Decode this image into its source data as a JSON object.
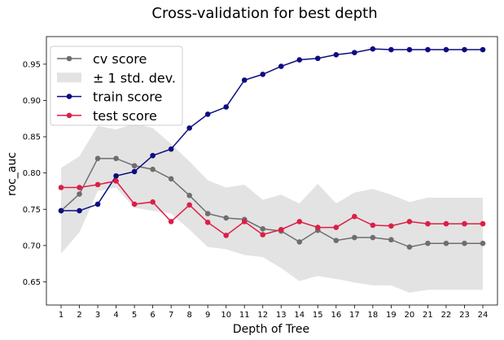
{
  "chart_data": {
    "type": "line",
    "title": "Cross-validation for best depth",
    "xlabel": "Depth of Tree",
    "ylabel": "roc_auc",
    "x": [
      1,
      2,
      3,
      4,
      5,
      6,
      7,
      8,
      9,
      10,
      11,
      12,
      13,
      14,
      15,
      16,
      17,
      18,
      19,
      20,
      21,
      22,
      23,
      24
    ],
    "xlim": [
      0.2,
      24.8
    ],
    "ylim": [
      0.618,
      0.988
    ],
    "yticks": [
      "0.65",
      "0.70",
      "0.75",
      "0.80",
      "0.85",
      "0.90",
      "0.95"
    ],
    "grid": false,
    "legend_placement": "top-left",
    "series": [
      {
        "name": "cv score",
        "color": "#6e6e6e",
        "values": [
          0.748,
          0.771,
          0.82,
          0.82,
          0.81,
          0.805,
          0.792,
          0.769,
          0.744,
          0.738,
          0.736,
          0.723,
          0.72,
          0.705,
          0.721,
          0.707,
          0.711,
          0.711,
          0.708,
          0.698,
          0.703,
          0.703,
          0.703,
          0.703
        ]
      },
      {
        "name": "train score",
        "color": "#0d0d80",
        "values": [
          0.748,
          0.748,
          0.757,
          0.796,
          0.802,
          0.824,
          0.833,
          0.862,
          0.881,
          0.891,
          0.928,
          0.936,
          0.947,
          0.956,
          0.958,
          0.963,
          0.966,
          0.971,
          0.97,
          0.97,
          0.97,
          0.97,
          0.97,
          0.97
        ]
      },
      {
        "name": "test score",
        "color": "#dc1e46",
        "values": [
          0.78,
          0.78,
          0.784,
          0.789,
          0.757,
          0.76,
          0.733,
          0.756,
          0.732,
          0.714,
          0.733,
          0.715,
          0.722,
          0.733,
          0.725,
          0.725,
          0.74,
          0.728,
          0.727,
          0.733,
          0.73,
          0.73,
          0.73,
          0.73
        ]
      }
    ],
    "band": {
      "name": "± 1 std. dev.",
      "color": "#e3e3e3",
      "upper": [
        0.807,
        0.823,
        0.865,
        0.86,
        0.868,
        0.862,
        0.84,
        0.816,
        0.79,
        0.78,
        0.784,
        0.763,
        0.77,
        0.758,
        0.785,
        0.758,
        0.773,
        0.778,
        0.77,
        0.76,
        0.766,
        0.766,
        0.766,
        0.766
      ],
      "lower": [
        0.689,
        0.718,
        0.775,
        0.78,
        0.752,
        0.748,
        0.744,
        0.722,
        0.698,
        0.695,
        0.687,
        0.684,
        0.669,
        0.651,
        0.658,
        0.654,
        0.649,
        0.645,
        0.645,
        0.635,
        0.639,
        0.639,
        0.639,
        0.639
      ]
    }
  }
}
